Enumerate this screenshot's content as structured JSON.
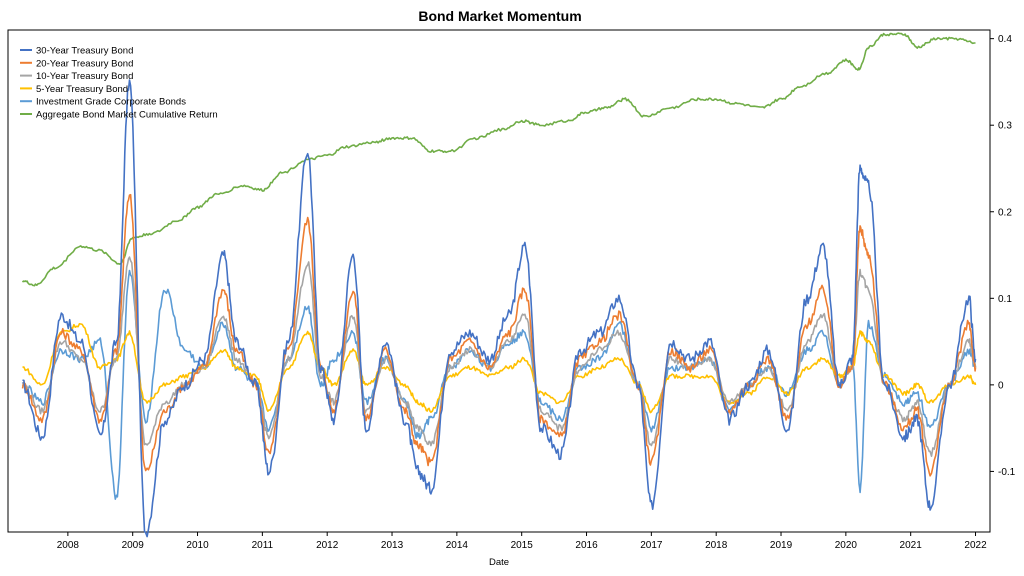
{
  "chart_data": {
    "type": "line",
    "title": "Bond Market Momentum",
    "xlabel": "Date",
    "ylabel": "",
    "xlim": [
      2007.2,
      2022.1
    ],
    "ylim": [
      -0.17,
      0.41
    ],
    "x_ticks": [
      "2008",
      "2009",
      "2010",
      "2011",
      "2012",
      "2013",
      "2014",
      "2015",
      "2016",
      "2017",
      "2018",
      "2019",
      "2020",
      "2021",
      "2022"
    ],
    "y_ticks": [
      "0.4",
      "0.3",
      "0.2",
      "0.1",
      "0",
      "-0.1"
    ],
    "y_axis_side": "right",
    "grid": false,
    "legend_position": "top-left",
    "series": [
      {
        "name": "30-Year Treasury Bond",
        "color": "#4472C4",
        "x": [
          2007.3,
          2007.6,
          2007.9,
          2008.2,
          2008.5,
          2008.75,
          2008.95,
          2009.2,
          2009.5,
          2009.8,
          2010.1,
          2010.4,
          2010.6,
          2010.9,
          2011.1,
          2011.4,
          2011.7,
          2011.9,
          2012.1,
          2012.4,
          2012.6,
          2012.9,
          2013.2,
          2013.4,
          2013.6,
          2013.9,
          2014.2,
          2014.5,
          2014.8,
          2015.05,
          2015.3,
          2015.6,
          2015.9,
          2016.2,
          2016.5,
          2016.8,
          2017.0,
          2017.3,
          2017.6,
          2017.9,
          2018.2,
          2018.5,
          2018.8,
          2019.1,
          2019.4,
          2019.65,
          2019.9,
          2020.1,
          2020.22,
          2020.35,
          2020.6,
          2020.9,
          2021.1,
          2021.3,
          2021.6,
          2021.9,
          2022.0
        ],
        "y": [
          0.0,
          -0.06,
          0.08,
          0.05,
          -0.06,
          0.05,
          0.35,
          -0.17,
          -0.04,
          0.0,
          0.03,
          0.15,
          0.05,
          0.0,
          -0.1,
          0.05,
          0.27,
          0.02,
          -0.04,
          0.15,
          -0.05,
          0.05,
          -0.04,
          -0.1,
          -0.12,
          0.04,
          0.06,
          0.03,
          0.08,
          0.16,
          -0.05,
          -0.08,
          0.04,
          0.06,
          0.1,
          0.0,
          -0.14,
          0.05,
          0.03,
          0.05,
          -0.04,
          0.0,
          0.04,
          -0.05,
          0.1,
          0.16,
          0.0,
          0.03,
          0.25,
          0.23,
          0.0,
          -0.06,
          -0.04,
          -0.14,
          0.0,
          0.1,
          0.03
        ]
      },
      {
        "name": "20-Year Treasury Bond",
        "color": "#ED7D31",
        "x": [
          2007.3,
          2007.6,
          2007.9,
          2008.2,
          2008.5,
          2008.75,
          2008.95,
          2009.2,
          2009.5,
          2009.8,
          2010.1,
          2010.4,
          2010.6,
          2010.9,
          2011.1,
          2011.4,
          2011.7,
          2011.9,
          2012.1,
          2012.4,
          2012.6,
          2012.9,
          2013.2,
          2013.4,
          2013.6,
          2013.9,
          2014.2,
          2014.5,
          2014.8,
          2015.05,
          2015.3,
          2015.6,
          2015.9,
          2016.2,
          2016.5,
          2016.8,
          2017.0,
          2017.3,
          2017.6,
          2017.9,
          2018.2,
          2018.5,
          2018.8,
          2019.1,
          2019.4,
          2019.65,
          2019.9,
          2020.1,
          2020.22,
          2020.35,
          2020.6,
          2020.9,
          2021.1,
          2021.3,
          2021.6,
          2021.9,
          2022.0
        ],
        "y": [
          0.0,
          -0.04,
          0.06,
          0.04,
          -0.04,
          0.04,
          0.22,
          -0.1,
          -0.03,
          0.0,
          0.02,
          0.11,
          0.04,
          0.0,
          -0.08,
          0.04,
          0.19,
          0.02,
          -0.03,
          0.11,
          -0.04,
          0.04,
          -0.03,
          -0.07,
          -0.09,
          0.03,
          0.05,
          0.02,
          0.06,
          0.11,
          -0.04,
          -0.06,
          0.03,
          0.05,
          0.08,
          0.0,
          -0.09,
          0.04,
          0.02,
          0.04,
          -0.03,
          0.0,
          0.03,
          -0.04,
          0.07,
          0.11,
          0.0,
          0.02,
          0.18,
          0.15,
          0.0,
          -0.05,
          -0.03,
          -0.1,
          0.0,
          0.07,
          0.02
        ]
      },
      {
        "name": "10-Year Treasury Bond",
        "color": "#A5A5A5",
        "x": [
          2007.3,
          2007.6,
          2007.9,
          2008.2,
          2008.5,
          2008.75,
          2008.95,
          2009.2,
          2009.5,
          2009.8,
          2010.1,
          2010.4,
          2010.6,
          2010.9,
          2011.1,
          2011.4,
          2011.7,
          2011.9,
          2012.1,
          2012.4,
          2012.6,
          2012.9,
          2013.2,
          2013.4,
          2013.6,
          2013.9,
          2014.2,
          2014.5,
          2014.8,
          2015.05,
          2015.3,
          2015.6,
          2015.9,
          2016.2,
          2016.5,
          2016.8,
          2017.0,
          2017.3,
          2017.6,
          2017.9,
          2018.2,
          2018.5,
          2018.8,
          2019.1,
          2019.4,
          2019.65,
          2019.9,
          2020.1,
          2020.22,
          2020.35,
          2020.6,
          2020.9,
          2021.1,
          2021.3,
          2021.6,
          2021.9,
          2022.0
        ],
        "y": [
          0.0,
          -0.03,
          0.05,
          0.03,
          -0.03,
          0.03,
          0.15,
          -0.07,
          -0.02,
          0.0,
          0.02,
          0.08,
          0.03,
          0.0,
          -0.06,
          0.03,
          0.14,
          0.01,
          -0.02,
          0.08,
          -0.03,
          0.03,
          -0.02,
          -0.05,
          -0.07,
          0.02,
          0.04,
          0.02,
          0.05,
          0.08,
          -0.03,
          -0.05,
          0.02,
          0.04,
          0.06,
          0.0,
          -0.07,
          0.03,
          0.02,
          0.03,
          -0.02,
          0.0,
          0.02,
          -0.03,
          0.05,
          0.08,
          0.0,
          0.02,
          0.13,
          0.11,
          0.0,
          -0.04,
          -0.02,
          -0.08,
          0.0,
          0.05,
          0.02
        ]
      },
      {
        "name": "5-Year Treasury Bond",
        "color": "#FFC000",
        "x": [
          2007.3,
          2007.6,
          2007.9,
          2008.2,
          2008.5,
          2008.75,
          2008.95,
          2009.2,
          2009.5,
          2009.8,
          2010.1,
          2010.4,
          2010.6,
          2010.9,
          2011.1,
          2011.4,
          2011.7,
          2011.9,
          2012.1,
          2012.4,
          2012.6,
          2012.9,
          2013.2,
          2013.4,
          2013.6,
          2013.9,
          2014.2,
          2014.5,
          2014.8,
          2015.05,
          2015.3,
          2015.6,
          2015.9,
          2016.2,
          2016.5,
          2016.8,
          2017.0,
          2017.3,
          2017.6,
          2017.9,
          2018.2,
          2018.5,
          2018.8,
          2019.1,
          2019.4,
          2019.65,
          2019.9,
          2020.1,
          2020.22,
          2020.35,
          2020.6,
          2020.9,
          2021.1,
          2021.3,
          2021.6,
          2021.9,
          2022.0
        ],
        "y": [
          0.02,
          0.0,
          0.06,
          0.07,
          0.02,
          0.03,
          0.06,
          -0.02,
          0.0,
          0.01,
          0.02,
          0.04,
          0.02,
          0.01,
          -0.03,
          0.02,
          0.06,
          0.02,
          0.0,
          0.04,
          0.0,
          0.02,
          0.0,
          -0.02,
          -0.03,
          0.01,
          0.02,
          0.01,
          0.02,
          0.03,
          -0.01,
          -0.02,
          0.01,
          0.02,
          0.03,
          0.0,
          -0.03,
          0.01,
          0.01,
          0.01,
          -0.02,
          -0.01,
          0.01,
          -0.01,
          0.02,
          0.03,
          0.01,
          0.02,
          0.06,
          0.05,
          0.01,
          -0.01,
          0.0,
          -0.02,
          0.0,
          0.01,
          0.0
        ]
      },
      {
        "name": "Investment Grade Corporate Bonds",
        "color": "#5B9BD5",
        "x": [
          2007.3,
          2007.6,
          2007.9,
          2008.2,
          2008.5,
          2008.75,
          2008.95,
          2009.2,
          2009.5,
          2009.8,
          2010.1,
          2010.4,
          2010.6,
          2010.9,
          2011.1,
          2011.4,
          2011.7,
          2011.9,
          2012.1,
          2012.4,
          2012.6,
          2012.9,
          2013.2,
          2013.4,
          2013.6,
          2013.9,
          2014.2,
          2014.5,
          2014.8,
          2015.05,
          2015.3,
          2015.6,
          2015.9,
          2016.2,
          2016.5,
          2016.8,
          2017.0,
          2017.3,
          2017.6,
          2017.9,
          2018.2,
          2018.5,
          2018.8,
          2019.1,
          2019.4,
          2019.65,
          2019.9,
          2020.1,
          2020.22,
          2020.35,
          2020.6,
          2020.9,
          2021.1,
          2021.3,
          2021.6,
          2021.9,
          2022.0
        ],
        "y": [
          0.0,
          -0.02,
          0.04,
          0.03,
          0.05,
          -0.13,
          0.13,
          -0.04,
          0.11,
          0.04,
          0.02,
          0.07,
          0.02,
          0.0,
          -0.05,
          0.03,
          0.09,
          0.0,
          0.03,
          0.06,
          -0.02,
          0.03,
          -0.02,
          -0.06,
          -0.04,
          0.02,
          0.04,
          0.02,
          0.05,
          0.06,
          -0.02,
          -0.04,
          0.02,
          0.03,
          0.07,
          0.0,
          -0.05,
          0.02,
          0.02,
          0.03,
          -0.03,
          0.0,
          0.02,
          -0.01,
          0.04,
          0.06,
          0.0,
          0.03,
          -0.12,
          0.07,
          0.01,
          -0.02,
          -0.01,
          -0.05,
          0.0,
          0.04,
          0.02
        ]
      },
      {
        "name": "Aggregate Bond Market Cumulative Return",
        "color": "#70AD47",
        "x": [
          2007.3,
          2007.5,
          2007.8,
          2008.2,
          2008.5,
          2008.8,
          2009.0,
          2009.3,
          2009.7,
          2010.0,
          2010.3,
          2010.7,
          2011.0,
          2011.3,
          2011.7,
          2012.0,
          2012.3,
          2012.7,
          2013.0,
          2013.3,
          2013.6,
          2013.9,
          2014.3,
          2014.7,
          2015.0,
          2015.3,
          2015.7,
          2016.0,
          2016.3,
          2016.6,
          2016.9,
          2017.3,
          2017.7,
          2018.0,
          2018.3,
          2018.7,
          2019.0,
          2019.3,
          2019.7,
          2020.0,
          2020.2,
          2020.35,
          2020.6,
          2020.9,
          2021.1,
          2021.4,
          2021.7,
          2022.0
        ],
        "y": [
          0.12,
          0.115,
          0.135,
          0.16,
          0.155,
          0.14,
          0.17,
          0.175,
          0.19,
          0.205,
          0.22,
          0.23,
          0.225,
          0.245,
          0.26,
          0.265,
          0.275,
          0.28,
          0.285,
          0.285,
          0.27,
          0.27,
          0.285,
          0.295,
          0.305,
          0.3,
          0.305,
          0.315,
          0.32,
          0.33,
          0.31,
          0.32,
          0.33,
          0.33,
          0.325,
          0.32,
          0.33,
          0.345,
          0.36,
          0.375,
          0.365,
          0.39,
          0.405,
          0.405,
          0.39,
          0.4,
          0.4,
          0.395
        ]
      }
    ]
  }
}
